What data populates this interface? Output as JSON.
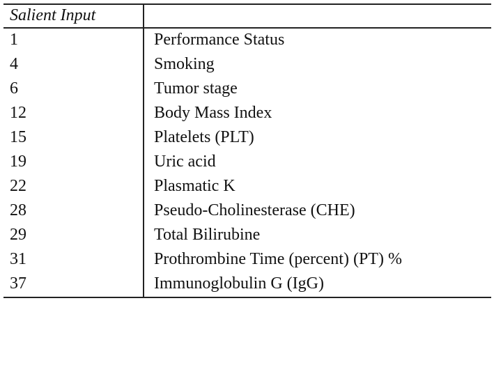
{
  "table": {
    "header": [
      "Salient Input"
    ],
    "rows": [
      [
        "1",
        "Performance Status"
      ],
      [
        "4",
        "Smoking"
      ],
      [
        "6",
        "Tumor stage"
      ],
      [
        "12",
        "Body Mass Index"
      ],
      [
        "15",
        "Platelets (PLT)"
      ],
      [
        "19",
        "Uric acid"
      ],
      [
        "22",
        "Plasmatic K"
      ],
      [
        "28",
        "Pseudo-Cholinesterase (CHE)"
      ],
      [
        "29",
        "Total Bilirubine"
      ],
      [
        "31",
        "Prothrombine Time (percent) (PT) %"
      ],
      [
        "37",
        "Immunoglobulin G (IgG)"
      ]
    ]
  }
}
